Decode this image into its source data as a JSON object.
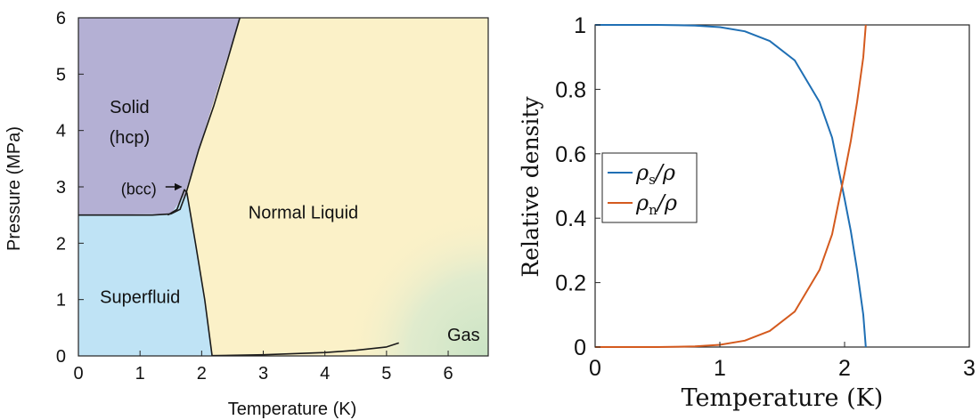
{
  "chart_data": [
    {
      "type": "area",
      "xlabel": "Temperature (K)",
      "ylabel": "Pressure (MPa)",
      "xlim": [
        0,
        6.65
      ],
      "ylim": [
        0,
        6
      ],
      "x_ticks": [
        "0",
        "1",
        "2",
        "3",
        "4",
        "5",
        "6"
      ],
      "y_ticks": [
        "0",
        "1",
        "2",
        "3",
        "4",
        "5",
        "6"
      ],
      "grid": false,
      "regions": [
        {
          "label": "Solid",
          "sublabel": "(hcp)",
          "color": "#b4b0d4",
          "polygon": [
            [
              0,
              6
            ],
            [
              2.62,
              6
            ],
            [
              1.72,
              2.85
            ],
            [
              1.5,
              2.52
            ],
            [
              0,
              2.5
            ]
          ],
          "label_at": [
            0.83,
            4.25
          ]
        },
        {
          "label": "Superfluid",
          "color": "#bfe3f5",
          "polygon": [
            [
              0,
              0
            ],
            [
              2.17,
              0
            ],
            [
              2.05,
              1.0
            ],
            [
              1.9,
              2.0
            ],
            [
              1.76,
              2.9
            ],
            [
              1.5,
              2.52
            ],
            [
              0,
              2.5
            ]
          ],
          "label_at": [
            1.0,
            1.05
          ]
        },
        {
          "label": "Normal Liquid",
          "color": "#fbf1c8",
          "polygon": [
            [
              2.62,
              6
            ],
            [
              6.65,
              6
            ],
            [
              6.65,
              0
            ],
            [
              2.17,
              0
            ],
            [
              2.05,
              1.0
            ],
            [
              1.9,
              2.0
            ],
            [
              1.76,
              2.9
            ],
            [
              1.72,
              2.85
            ]
          ],
          "label_at": [
            3.65,
            2.55
          ]
        },
        {
          "label": "Gas",
          "color": "#d7e9cf",
          "label_at": [
            6.25,
            0.38
          ]
        },
        {
          "label": "(bcc)",
          "arrow_to": [
            1.7,
            3.0
          ],
          "label_at": [
            0.98,
            2.98
          ]
        }
      ],
      "boundaries": [
        {
          "name": "melting",
          "points": [
            [
              1.5,
              2.52
            ],
            [
              1.65,
              2.6
            ],
            [
              1.75,
              2.9
            ],
            [
              1.95,
              3.65
            ],
            [
              2.2,
              4.45
            ],
            [
              2.42,
              5.25
            ],
            [
              2.62,
              6.0
            ]
          ]
        },
        {
          "name": "bcc",
          "points": [
            [
              1.45,
              2.5
            ],
            [
              1.6,
              2.6
            ],
            [
              1.72,
              2.95
            ],
            [
              1.76,
              2.9
            ]
          ]
        },
        {
          "name": "solid-superfluid",
          "points": [
            [
              0,
              2.5
            ],
            [
              1.2,
              2.5
            ],
            [
              1.5,
              2.52
            ]
          ]
        },
        {
          "name": "lambda",
          "points": [
            [
              1.76,
              2.9
            ],
            [
              1.9,
              2.0
            ],
            [
              2.05,
              1.0
            ],
            [
              2.17,
              0
            ]
          ]
        },
        {
          "name": "vaporization",
          "points": [
            [
              2.17,
              0.005
            ],
            [
              3,
              0.02
            ],
            [
              4,
              0.06
            ],
            [
              4.5,
              0.1
            ],
            [
              5.0,
              0.16
            ],
            [
              5.2,
              0.23
            ]
          ]
        }
      ]
    },
    {
      "type": "line",
      "xlabel": "Temperature (K)",
      "ylabel": "Relative density",
      "xlim": [
        0,
        3
      ],
      "ylim": [
        0,
        1
      ],
      "x_ticks": [
        "0",
        "1",
        "2",
        "3"
      ],
      "y_ticks": [
        "0",
        "0.2",
        "0.4",
        "0.6",
        "0.8",
        "1"
      ],
      "grid": false,
      "legend_position": "center-left",
      "series": [
        {
          "name": "ρs/ρ",
          "name_main": "ρ",
          "name_sub": "s",
          "name_tail": "/ρ",
          "color": "#1f6fb4",
          "x": [
            0,
            0.5,
            0.8,
            1.0,
            1.2,
            1.4,
            1.6,
            1.8,
            1.9,
            2.0,
            2.05,
            2.1,
            2.15,
            2.17
          ],
          "values": [
            1.0,
            1.0,
            0.998,
            0.993,
            0.98,
            0.95,
            0.89,
            0.76,
            0.65,
            0.46,
            0.36,
            0.24,
            0.1,
            0.0
          ]
        },
        {
          "name": "ρn/ρ",
          "name_main": "ρ",
          "name_sub": "n",
          "name_tail": "/ρ",
          "color": "#d45a1e",
          "x": [
            0,
            0.5,
            0.8,
            1.0,
            1.2,
            1.4,
            1.6,
            1.8,
            1.9,
            2.0,
            2.05,
            2.1,
            2.15,
            2.17
          ],
          "values": [
            0.0,
            0.0,
            0.002,
            0.007,
            0.02,
            0.05,
            0.11,
            0.24,
            0.35,
            0.54,
            0.64,
            0.76,
            0.9,
            1.0
          ]
        }
      ]
    }
  ]
}
